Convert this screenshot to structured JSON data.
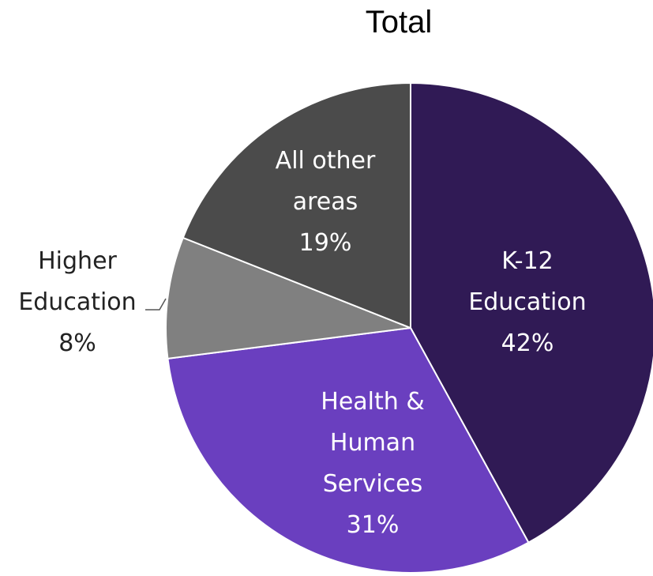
{
  "chart_data": {
    "type": "pie",
    "title": "Total",
    "categories": [
      "K-12 Education",
      "Health & Human Services",
      "Higher Education",
      "All other areas"
    ],
    "values": [
      42,
      31,
      8,
      19
    ],
    "value_labels": [
      "42%",
      "31%",
      "8%",
      "19%"
    ],
    "colors": [
      "#301a55",
      "#6a3fbf",
      "#808080",
      "#4b4b4b"
    ]
  }
}
